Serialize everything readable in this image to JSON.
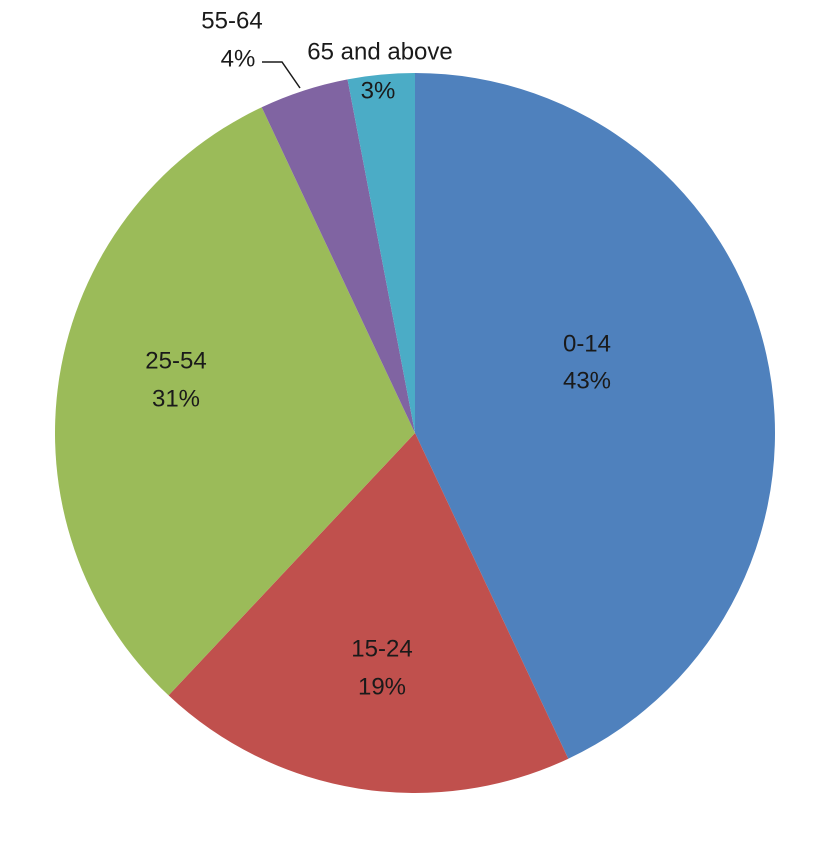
{
  "chart_data": {
    "type": "pie",
    "categories": [
      "0-14",
      "15-24",
      "25-54",
      "55-64",
      "65 and above"
    ],
    "values": [
      43,
      19,
      31,
      4,
      3
    ],
    "value_labels": [
      "43%",
      "19%",
      "31%",
      "4%",
      "3%"
    ],
    "colors": [
      "#4f81bd",
      "#c0504d",
      "#9bbb59",
      "#8064a2",
      "#4bacc6"
    ]
  }
}
